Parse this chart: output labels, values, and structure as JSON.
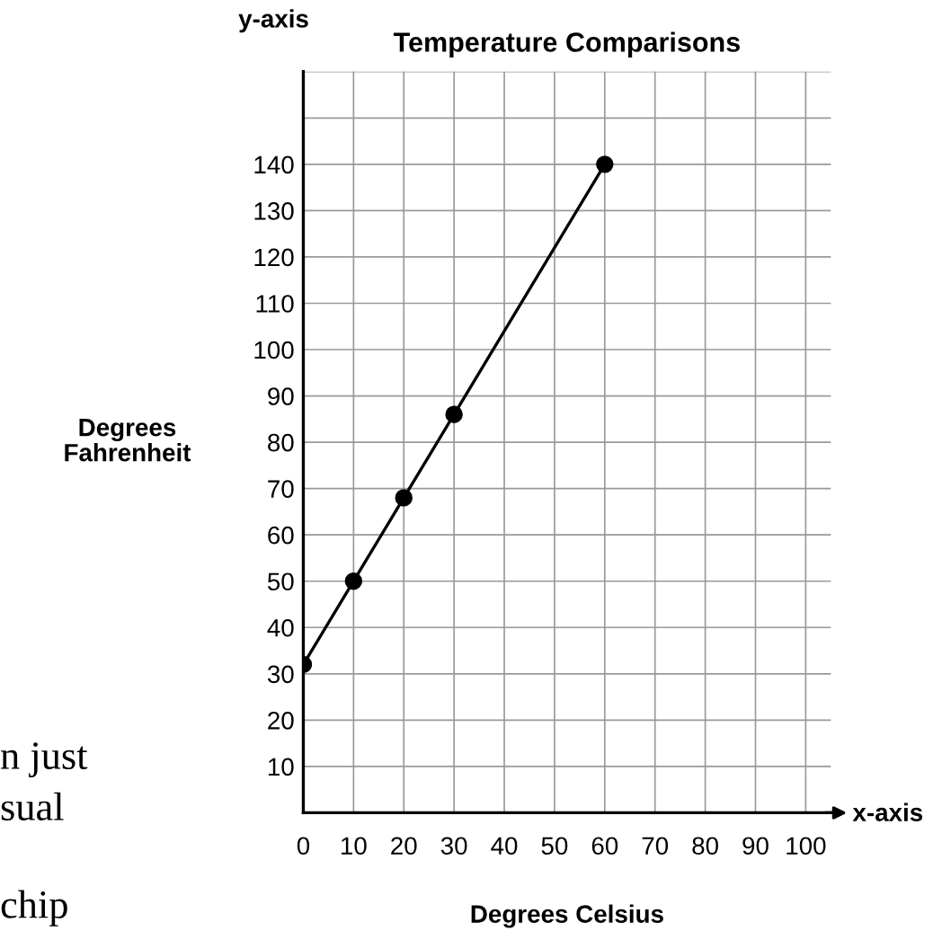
{
  "chart_data": {
    "type": "line",
    "title": "Temperature Comparisons",
    "xlabel": "Degrees Celsius",
    "ylabel": "Degrees\nFahrenheit",
    "x": [
      0,
      10,
      20,
      30,
      60
    ],
    "series": [
      {
        "color": "#000000",
        "values": [
          32,
          50,
          68,
          86,
          140
        ]
      }
    ],
    "xlim": [
      0,
      105
    ],
    "xticks": [
      {
        "value": 0,
        "label": "0"
      },
      10,
      20,
      30,
      40,
      50,
      60,
      70,
      80,
      90,
      100
    ],
    "ylim": [
      0,
      160
    ],
    "yticks": [
      10,
      20,
      30,
      40,
      50,
      60,
      70,
      80,
      90,
      100,
      110,
      120,
      130,
      140,
      {
        "value": 150,
        "label": null
      },
      {
        "value": 160,
        "label": null
      }
    ],
    "grid": true,
    "marker": "circle",
    "line_style": "solid",
    "annotations": [
      "y-axis",
      "x-axis",
      "n just",
      "sual",
      "chip"
    ]
  }
}
